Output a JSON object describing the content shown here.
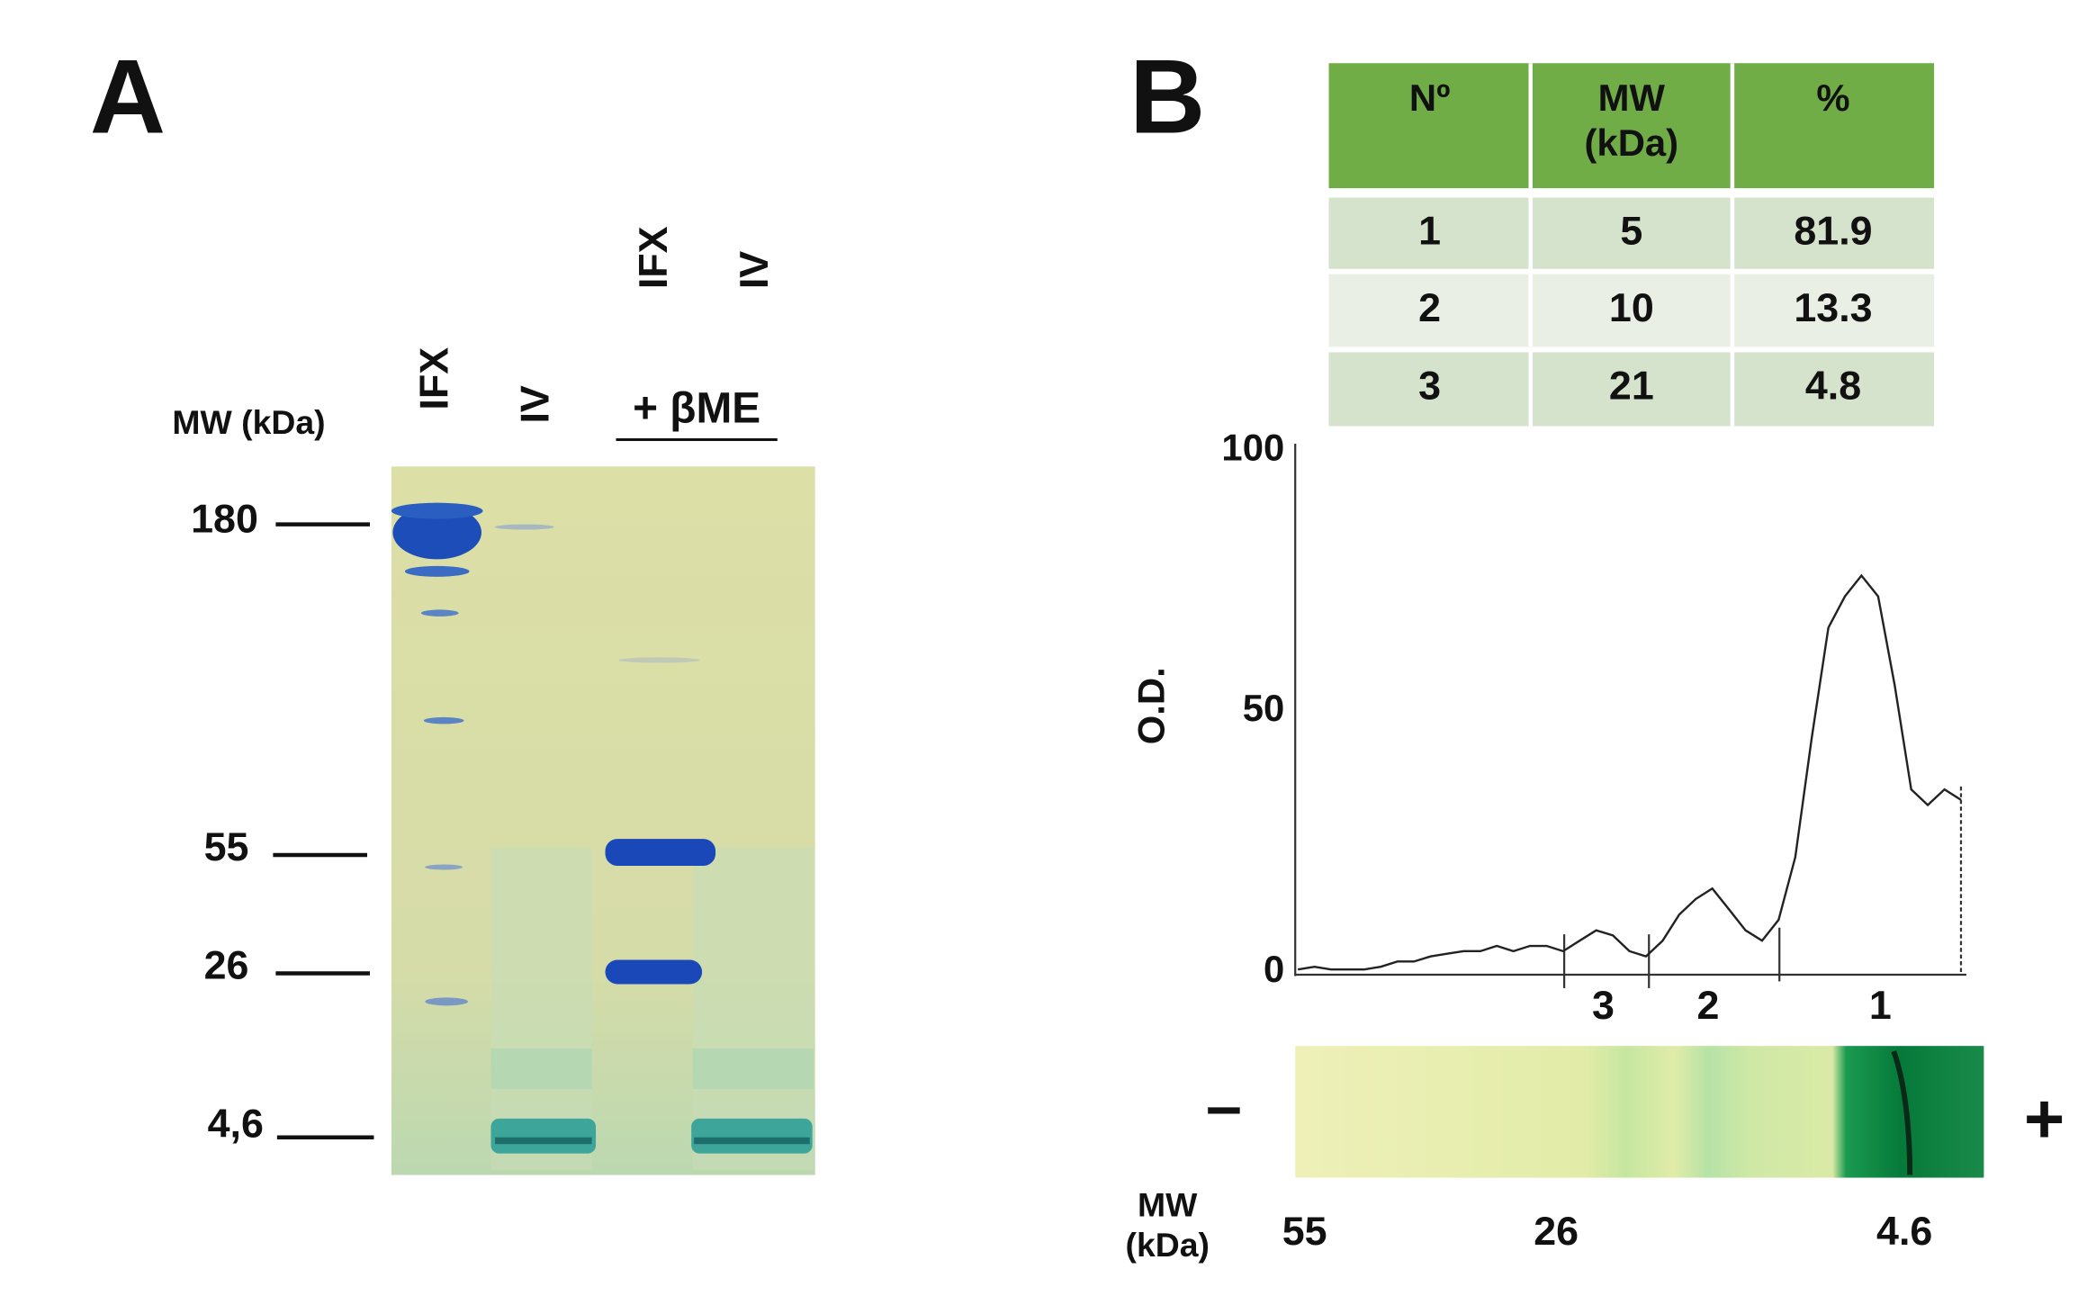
{
  "panel_a": {
    "label": "A",
    "mw_label": "MW (kDa)",
    "lanes": [
      "IFX",
      "IV",
      "IFX",
      "IV"
    ],
    "reduced_label": "+ βME",
    "markers": [
      "180",
      "55",
      "26",
      "4,6"
    ]
  },
  "panel_b": {
    "label": "B",
    "table": {
      "header": [
        "Nº",
        "MW (kDa)",
        "%"
      ],
      "rows": [
        [
          1,
          5,
          81.9
        ],
        [
          2,
          10,
          13.3
        ],
        [
          3,
          21,
          4.8
        ]
      ]
    },
    "peak_labels": [
      "3",
      "2",
      "1"
    ],
    "strip": {
      "minus": "–",
      "plus": "+",
      "mw_label": "MW (kDa)",
      "markers": [
        "55",
        "26",
        "4.6"
      ]
    }
  },
  "chart_data": {
    "type": "line",
    "ylabel": "O.D.",
    "ylim": [
      0,
      100
    ],
    "yticks": [
      0,
      50,
      100
    ],
    "values": [
      0.5,
      1,
      0.5,
      0.5,
      0.5,
      1,
      2,
      2,
      3,
      3.5,
      4,
      4,
      5,
      4,
      5,
      5,
      4,
      6,
      8,
      7,
      4,
      3,
      6,
      11,
      14,
      16,
      12,
      8,
      6,
      10,
      22,
      45,
      66,
      72,
      76,
      72,
      55,
      35,
      32,
      35,
      33
    ]
  }
}
